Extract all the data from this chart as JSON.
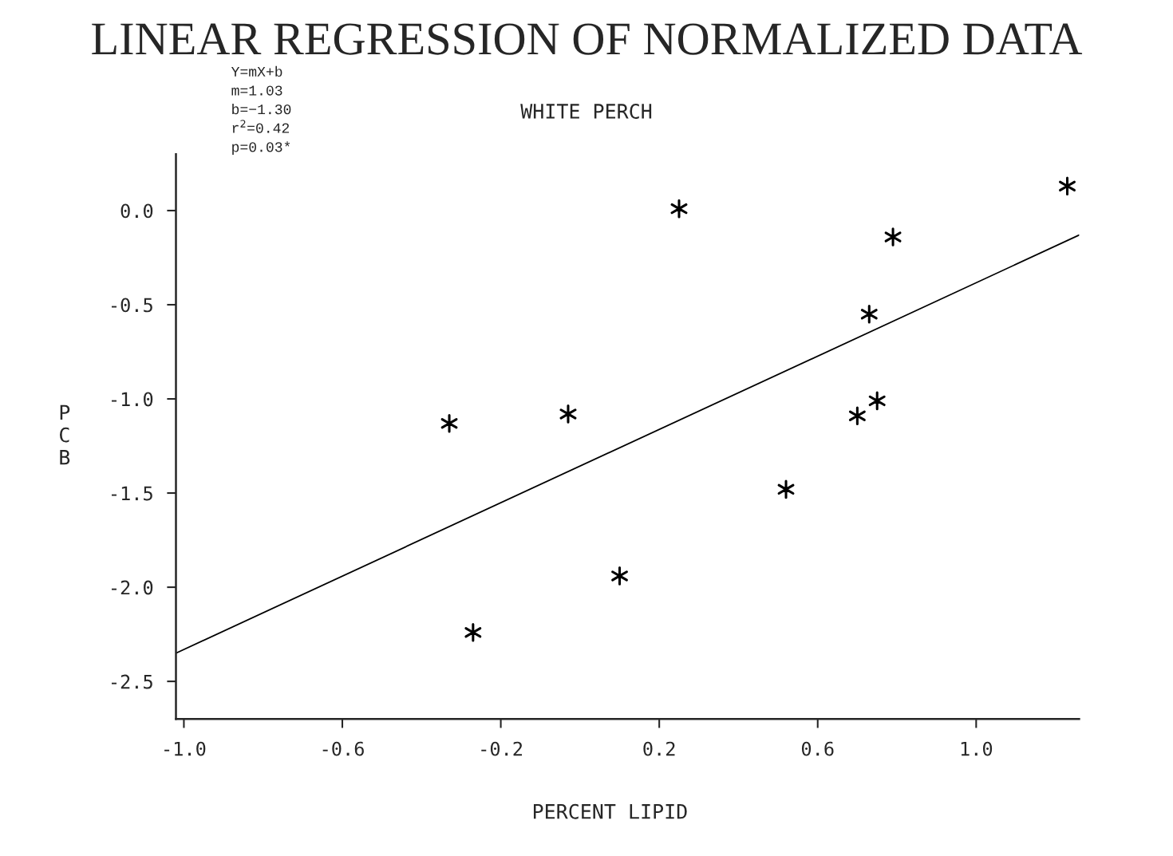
{
  "chart_data": {
    "type": "scatter",
    "title": "LINEAR REGRESSION OF NORMALIZED DATA",
    "subtitle": "WHITE PERCH",
    "xlabel": "PERCENT LIPID",
    "ylabel": "PCB",
    "annotations": [
      "Y=mX+b",
      "m=1.03",
      "b=−1.30",
      "r$^{2}$=0.42",
      "p=0.03*"
    ],
    "grid": false,
    "legend": false,
    "series": [
      {
        "marker": "cross",
        "color": "#000000",
        "x": [
          -0.33,
          -0.27,
          -0.03,
          0.1,
          0.25,
          0.52,
          0.7,
          0.75,
          0.73,
          0.79,
          1.23
        ],
        "values": [
          -1.13,
          -2.24,
          -1.08,
          -1.94,
          0.01,
          -1.48,
          -1.09,
          -1.01,
          -0.55,
          -0.14,
          0.13
        ]
      },
      {
        "type": "line",
        "color": "#000000",
        "x": [
          -1.02,
          1.26
        ],
        "values": [
          -2.35,
          -0.13
        ],
        "line_style": "solid"
      }
    ],
    "xlim": [
      -1.02,
      1.26
    ],
    "ylim": [
      -2.7,
      0.3
    ],
    "xticks": [
      {
        "value": -1.0,
        "label": "-1.0"
      },
      {
        "value": -0.6,
        "label": "-0.6"
      },
      {
        "value": -0.2,
        "label": "-0.2"
      },
      {
        "value": 0.2,
        "label": "0.2"
      },
      {
        "value": 0.6,
        "label": "0.6"
      },
      {
        "value": 1.0,
        "label": "1.0"
      }
    ],
    "yticks": [
      {
        "value": -2.5,
        "label": "-2.5"
      },
      {
        "value": -2.0,
        "label": "-2.0"
      },
      {
        "value": -1.5,
        "label": "-1.5"
      },
      {
        "value": -1.0,
        "label": "-1.0"
      },
      {
        "value": -0.5,
        "label": "-0.5"
      },
      {
        "value": 0.0,
        "label": "0.0"
      }
    ]
  }
}
